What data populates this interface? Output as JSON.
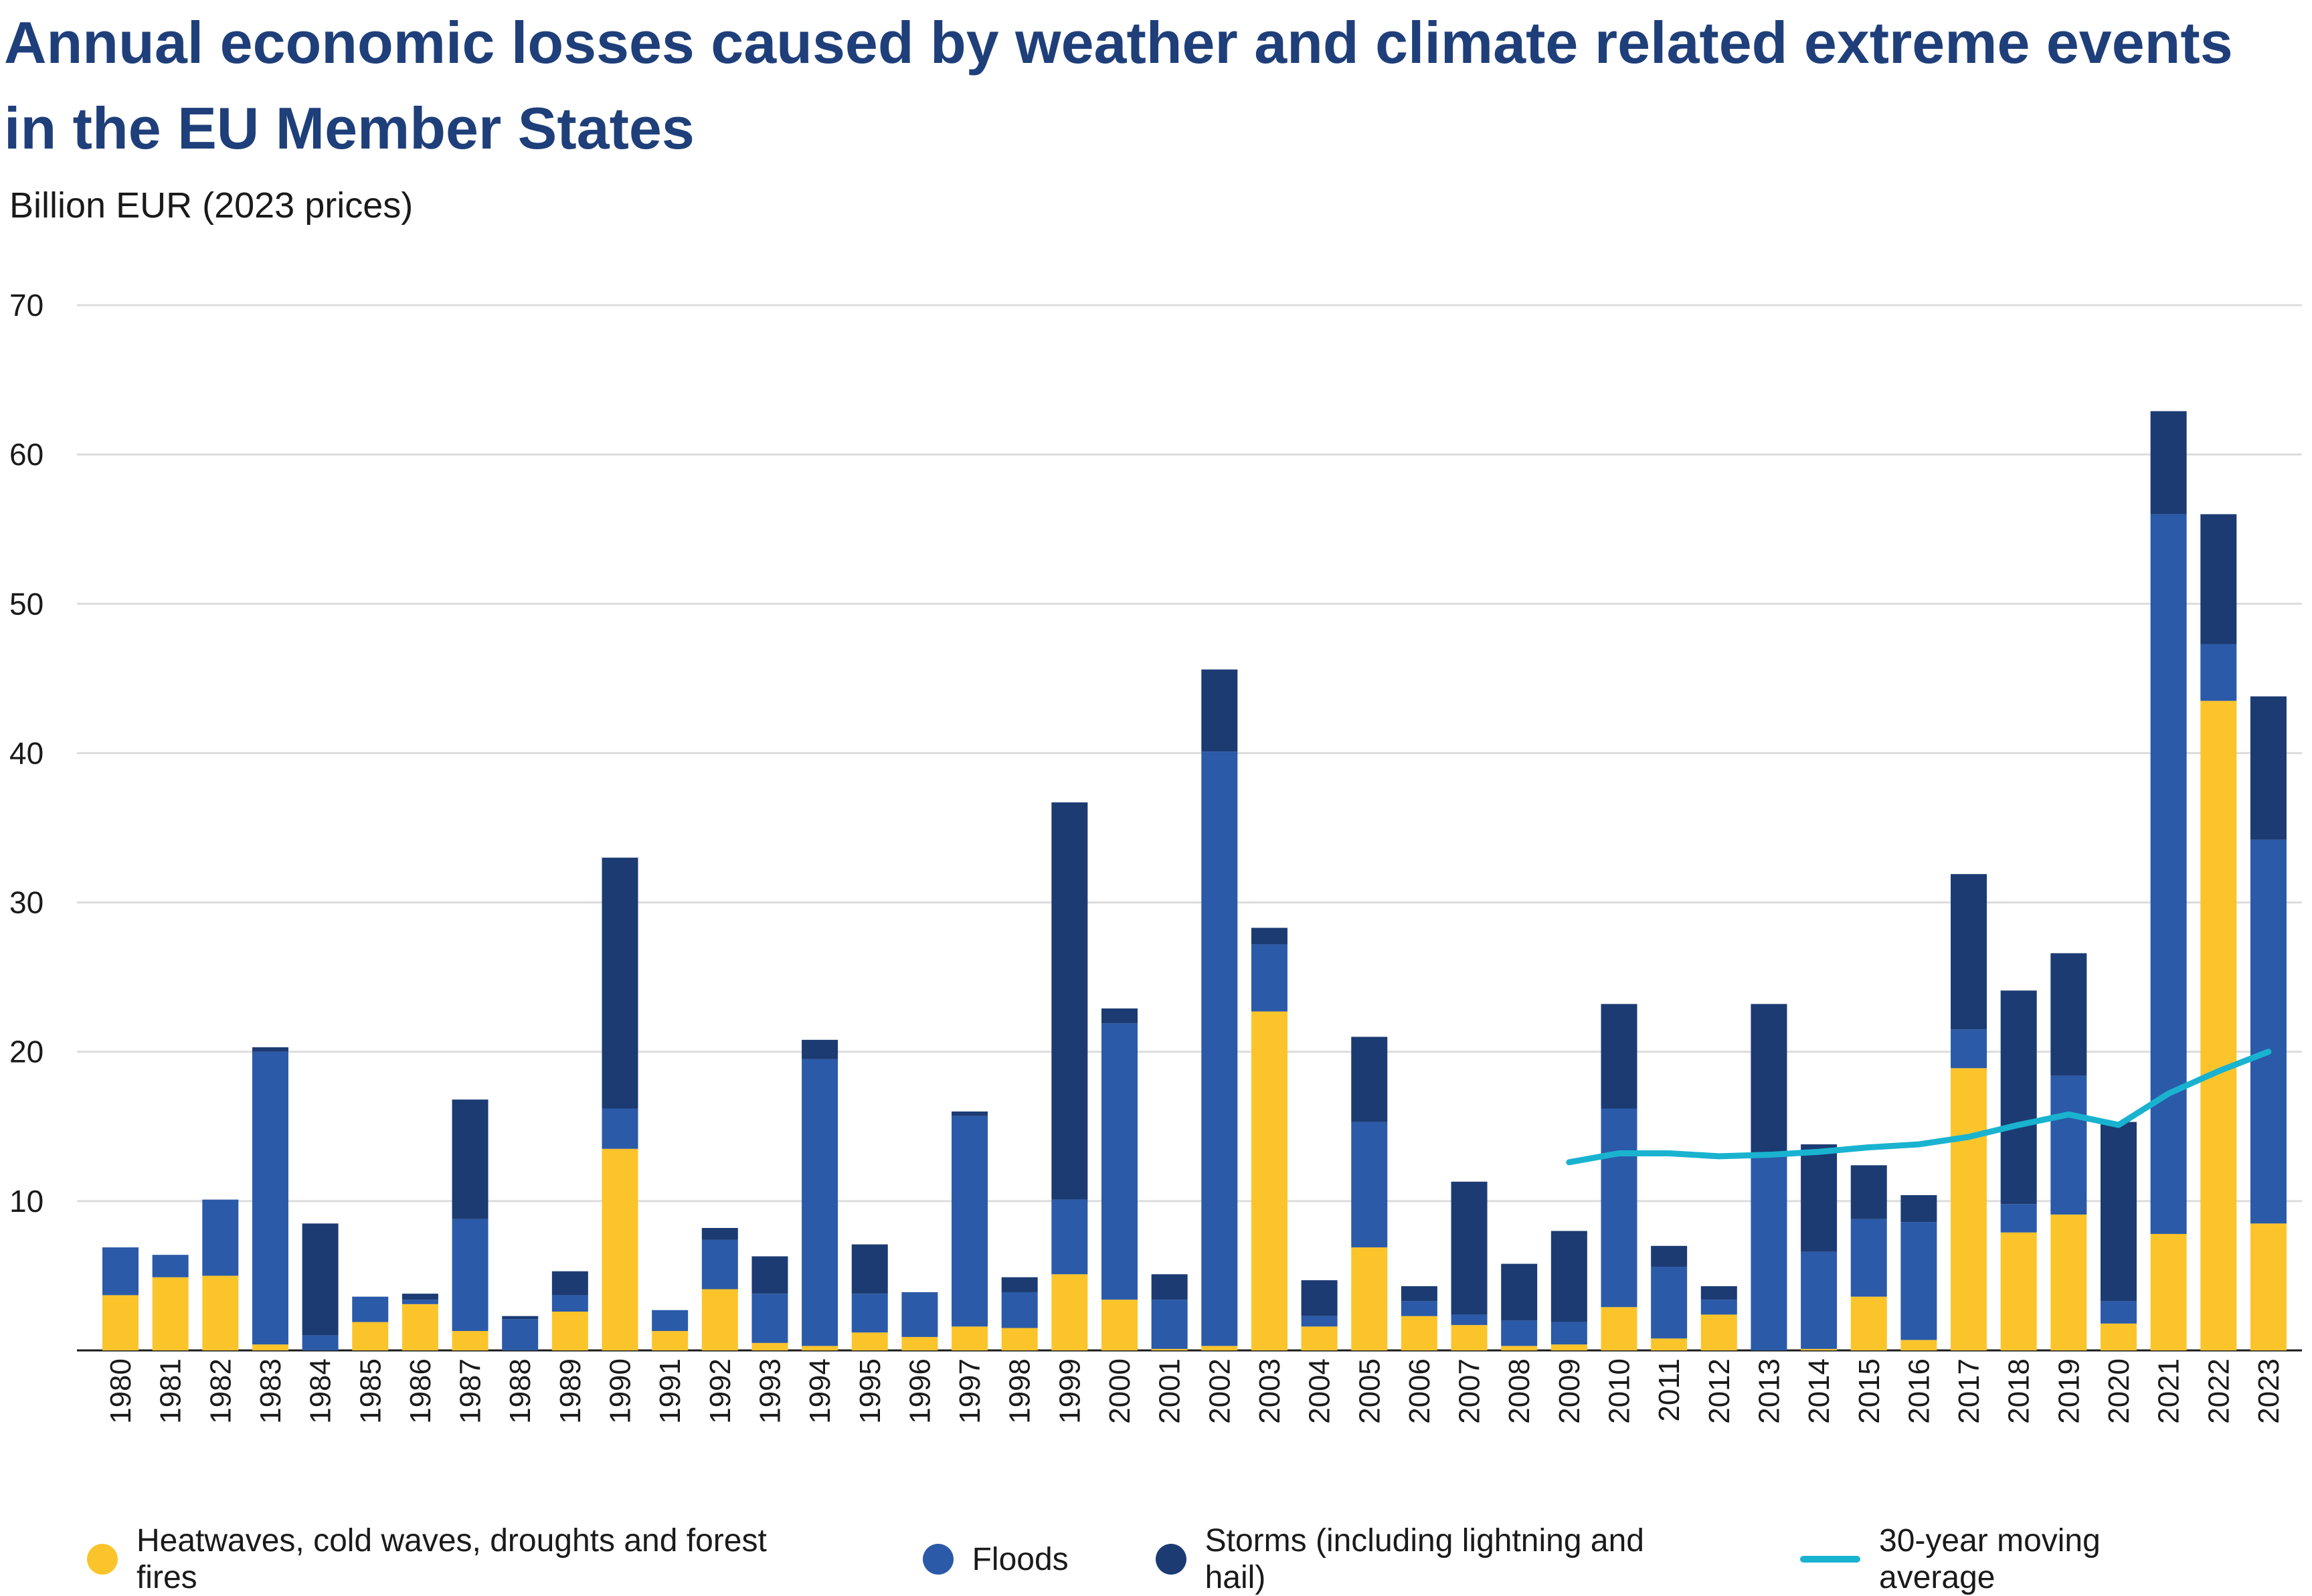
{
  "title": "Annual economic losses caused by weather and climate related extreme events in the EU Member States",
  "chart_data": {
    "type": "bar",
    "stacked": true,
    "ylabel": "Billion EUR (2023 prices)",
    "xlabel": "",
    "ylim": [
      0,
      70
    ],
    "yticks": [
      10,
      20,
      30,
      40,
      50,
      60,
      70
    ],
    "grid": true,
    "legend_position": "bottom",
    "categories": [
      "1980",
      "1981",
      "1982",
      "1983",
      "1984",
      "1985",
      "1986",
      "1987",
      "1988",
      "1989",
      "1990",
      "1991",
      "1992",
      "1993",
      "1994",
      "1995",
      "1996",
      "1997",
      "1998",
      "1999",
      "2000",
      "2001",
      "2002",
      "2003",
      "2004",
      "2005",
      "2006",
      "2007",
      "2008",
      "2009",
      "2010",
      "2011",
      "2012",
      "2013",
      "2014",
      "2015",
      "2016",
      "2017",
      "2018",
      "2019",
      "2020",
      "2021",
      "2022",
      "2023"
    ],
    "series": [
      {
        "name": "Heatwaves, cold waves, droughts and forest fires",
        "color": "#fcc42b",
        "values": [
          3.7,
          4.9,
          5.0,
          0.4,
          0.0,
          1.9,
          3.1,
          1.3,
          0.0,
          2.6,
          13.5,
          1.3,
          4.1,
          0.5,
          0.3,
          1.2,
          0.9,
          1.6,
          1.5,
          5.1,
          3.4,
          0.1,
          0.3,
          22.7,
          1.6,
          6.9,
          2.3,
          1.7,
          0.3,
          0.4,
          2.9,
          0.8,
          2.4,
          0.0,
          0.1,
          3.6,
          0.7,
          18.9,
          7.9,
          9.1,
          1.8,
          7.8,
          43.5,
          8.5
        ]
      },
      {
        "name": "Floods",
        "color": "#2b5aa8",
        "values": [
          3.2,
          1.5,
          5.1,
          19.6,
          1.0,
          1.7,
          0.3,
          7.5,
          2.1,
          1.1,
          2.7,
          1.4,
          3.3,
          3.3,
          19.2,
          2.6,
          3.0,
          14.1,
          2.4,
          5.0,
          18.5,
          3.3,
          39.8,
          4.5,
          0.7,
          8.4,
          1.0,
          0.7,
          1.7,
          1.5,
          13.3,
          4.8,
          1.0,
          13.0,
          6.5,
          5.2,
          7.9,
          2.6,
          1.9,
          9.3,
          1.5,
          48.2,
          3.8,
          25.7
        ]
      },
      {
        "name": "Storms (including lightning and hail)",
        "color": "#1c3b73",
        "values": [
          0.0,
          0.0,
          0.0,
          0.3,
          7.5,
          0.0,
          0.4,
          8.0,
          0.2,
          1.6,
          16.8,
          0.0,
          0.8,
          2.5,
          1.3,
          3.3,
          0.0,
          0.3,
          1.0,
          26.6,
          1.0,
          1.7,
          5.5,
          1.1,
          2.4,
          5.7,
          1.0,
          8.9,
          3.8,
          6.1,
          7.0,
          1.4,
          0.9,
          10.2,
          7.2,
          3.6,
          1.8,
          10.4,
          14.3,
          8.2,
          12.0,
          6.9,
          8.7,
          9.6
        ]
      }
    ],
    "line": {
      "name": "30-year moving average",
      "color": "#19b3d0",
      "x": [
        "2009",
        "2010",
        "2011",
        "2012",
        "2013",
        "2014",
        "2015",
        "2016",
        "2017",
        "2018",
        "2019",
        "2020",
        "2021",
        "2022",
        "2023"
      ],
      "values": [
        12.6,
        13.2,
        13.2,
        13.0,
        13.1,
        13.3,
        13.6,
        13.8,
        14.3,
        15.1,
        15.8,
        15.1,
        17.2,
        18.7,
        20.0
      ]
    }
  }
}
